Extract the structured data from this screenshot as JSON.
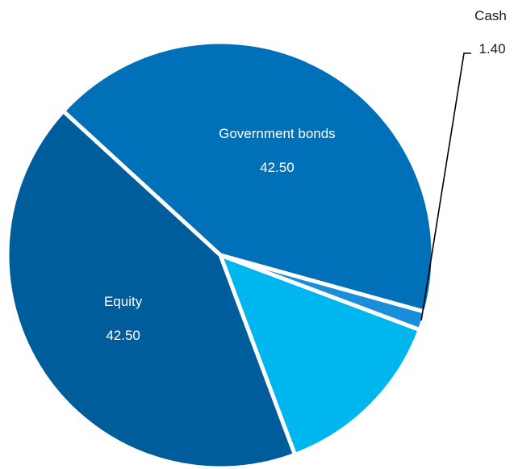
{
  "chart_data": {
    "type": "pie",
    "slices": [
      {
        "name": "Government bonds",
        "value": 42.5,
        "value_label": "42.50",
        "color": "#0070b8",
        "show_name": true
      },
      {
        "name": "Cash",
        "value": 1.4,
        "value_label": "1.40",
        "color": "#1a8ed8",
        "show_name": true
      },
      {
        "name": "",
        "value": 13.6,
        "value_label": "",
        "color": "#00b6ee",
        "show_name": false
      },
      {
        "name": "Equity",
        "value": 42.5,
        "value_label": "42.50",
        "color": "#005d9c",
        "show_name": true
      }
    ],
    "legend": "none"
  }
}
